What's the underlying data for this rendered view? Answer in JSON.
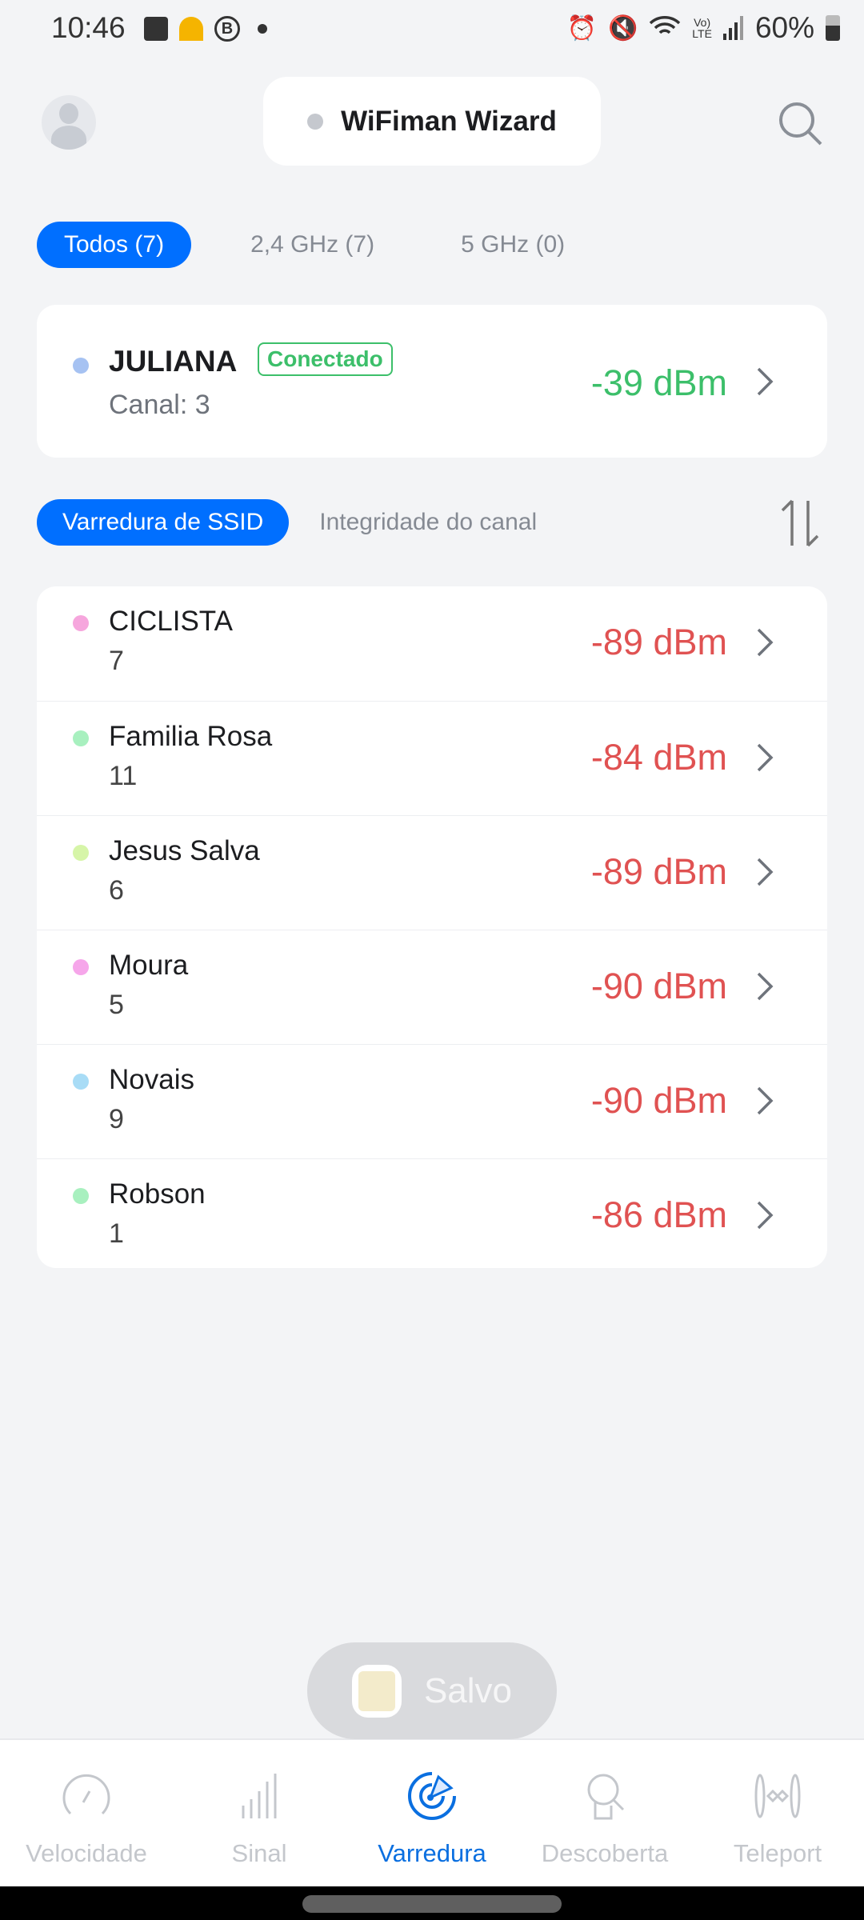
{
  "status_bar": {
    "time": "10:46",
    "battery": "60%",
    "icons": [
      "image-icon",
      "hardhat-app-icon",
      "whatsapp-business-icon",
      "dot-icon",
      "alarm-icon",
      "mute-icon",
      "wifi-icon",
      "volte-icon",
      "signal-icon",
      "battery-icon"
    ]
  },
  "header": {
    "title": "WiFiman Wizard",
    "avatar": "avatar-icon",
    "search": "search-icon"
  },
  "filters": [
    {
      "label": "Todos (7)",
      "active": true
    },
    {
      "label": "2,4 GHz (7)",
      "active": false
    },
    {
      "label": "5 GHz (0)",
      "active": false
    }
  ],
  "connected": {
    "ssid": "JULIANA",
    "badge": "Conectado",
    "channel": "Canal: 3",
    "signal": "-39 dBm",
    "dot_color": "#a6c2f2",
    "signal_color": "#3cbf6a"
  },
  "tabs": [
    {
      "label": "Varredura de SSID",
      "active": true
    },
    {
      "label": "Integridade do canal",
      "active": false
    }
  ],
  "networks": [
    {
      "ssid": "CICLISTA",
      "channel": "7",
      "signal": "-89 dBm",
      "color": "#f6a6dd"
    },
    {
      "ssid": "Familia Rosa",
      "channel": "11",
      "signal": "-84 dBm",
      "color": "#a8f0bf"
    },
    {
      "ssid": "Jesus Salva",
      "channel": "6",
      "signal": "-89 dBm",
      "color": "#d6f5a8"
    },
    {
      "ssid": "Moura",
      "channel": "5",
      "signal": "-90 dBm",
      "color": "#f6a6ea"
    },
    {
      "ssid": "Novais",
      "channel": "9",
      "signal": "-90 dBm",
      "color": "#a8dcf6"
    },
    {
      "ssid": "Robson",
      "channel": "1",
      "signal": "-86 dBm",
      "color": "#a8f0bf"
    }
  ],
  "toast": {
    "label": "Salvo"
  },
  "nav": [
    {
      "label": "Velocidade",
      "active": false
    },
    {
      "label": "Sinal",
      "active": false
    },
    {
      "label": "Varredura",
      "active": true
    },
    {
      "label": "Descoberta",
      "active": false
    },
    {
      "label": "Teleport",
      "active": false
    }
  ],
  "colors": {
    "accent": "#006fff",
    "weak_signal": "#e05252",
    "good_signal": "#3cbf6a"
  }
}
